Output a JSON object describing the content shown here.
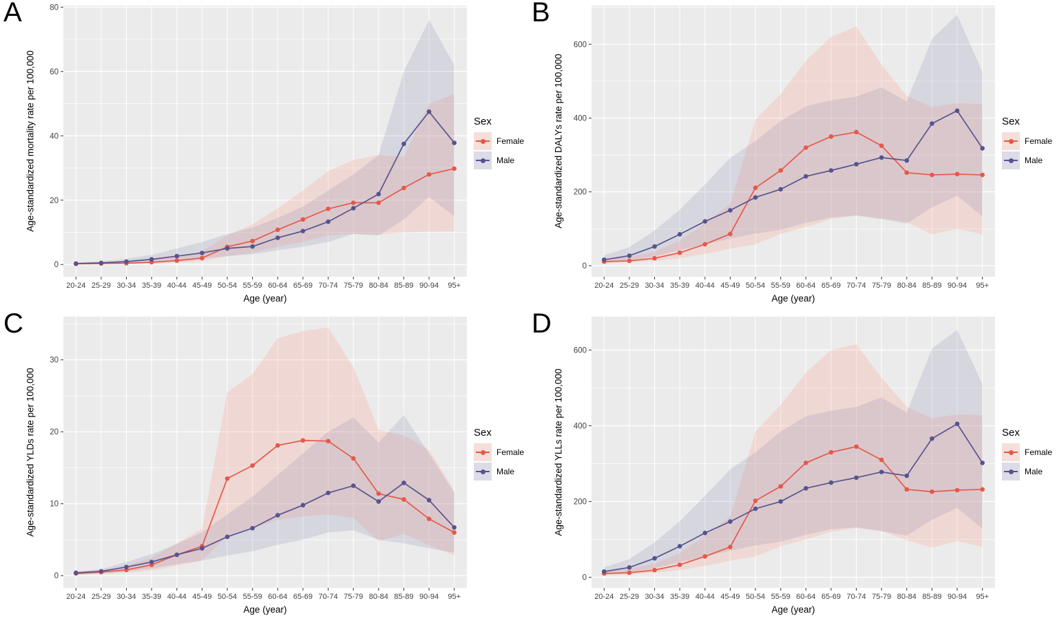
{
  "legend": {
    "title": "Sex",
    "position": "right",
    "items": [
      {
        "label": "Female",
        "line_color": "#E4594A",
        "band_color": "#F4DFD9",
        "band_fill": "rgba(250,170,150,0.28)"
      },
      {
        "label": "Male",
        "line_color": "#56548E",
        "band_color": "#DCDCE8",
        "band_fill": "rgba(126,126,176,0.19)"
      }
    ]
  },
  "chart_data": [
    {
      "panel": "A",
      "type": "line",
      "title": "",
      "ylabel": "Age-standardized mortality rate per 100,000",
      "xlabel": "Age (year)",
      "categories": [
        "20-24",
        "25-29",
        "30-34",
        "35-39",
        "40-44",
        "45-49",
        "50-54",
        "55-59",
        "60-64",
        "65-69",
        "70-74",
        "75-79",
        "80-84",
        "85-89",
        "90-94",
        "95+"
      ],
      "yticks": [
        0,
        20,
        40,
        60,
        80
      ],
      "ylim": [
        -3.8,
        80.5
      ],
      "grid": true,
      "legend_position": "right",
      "series": [
        {
          "name": "Female",
          "values": [
            0.2,
            0.3,
            0.4,
            0.7,
            1.2,
            2.0,
            5.5,
            7.3,
            10.8,
            14.0,
            17.3,
            19.2,
            19.2,
            23.8,
            28.0,
            29.8
          ],
          "lower": [
            0.1,
            0.1,
            0.2,
            0.3,
            0.6,
            1.0,
            2.6,
            3.6,
            5.5,
            7.0,
            9.0,
            9.5,
            9.3,
            10.0,
            10.2,
            10.3
          ],
          "upper": [
            0.4,
            0.6,
            0.9,
            1.5,
            2.6,
            4.0,
            9.0,
            12.5,
            17.5,
            23.0,
            29.0,
            32.5,
            34.0,
            33.5,
            50.0,
            53.0
          ]
        },
        {
          "name": "Male",
          "values": [
            0.3,
            0.5,
            0.9,
            1.6,
            2.6,
            3.6,
            5.0,
            5.6,
            8.3,
            10.4,
            13.3,
            17.5,
            21.9,
            37.5,
            47.5,
            37.8
          ],
          "lower": [
            0.2,
            0.3,
            0.5,
            0.8,
            1.3,
            1.9,
            2.6,
            3.2,
            4.4,
            5.5,
            7.0,
            9.5,
            9.0,
            14.0,
            21.0,
            15.0
          ],
          "upper": [
            0.6,
            1.0,
            1.8,
            3.0,
            5.0,
            7.0,
            9.5,
            11.5,
            14.5,
            18.0,
            23.0,
            28.0,
            34.0,
            60.0,
            76.0,
            62.0
          ]
        }
      ]
    },
    {
      "panel": "B",
      "type": "line",
      "title": "",
      "ylabel": "Age-standardized DALYs rate per 100,000",
      "xlabel": "Age (year)",
      "categories": [
        "20-24",
        "25-29",
        "30-34",
        "35-39",
        "40-44",
        "45-49",
        "50-54",
        "55-59",
        "60-64",
        "65-69",
        "70-74",
        "75-79",
        "80-84",
        "85-89",
        "90-94",
        "95+"
      ],
      "yticks": [
        0,
        200,
        400,
        600
      ],
      "ylim": [
        -30,
        705
      ],
      "grid": true,
      "legend_position": "right",
      "series": [
        {
          "name": "Female",
          "values": [
            11,
            13,
            20,
            35,
            58,
            86,
            211,
            258,
            320,
            350,
            362,
            325,
            252,
            246,
            248,
            246
          ],
          "lower": [
            6,
            9,
            13,
            20,
            32,
            46,
            58,
            86,
            105,
            126,
            136,
            128,
            118,
            85,
            100,
            85
          ],
          "upper": [
            18,
            24,
            38,
            68,
            115,
            168,
            395,
            465,
            555,
            620,
            648,
            545,
            460,
            430,
            440,
            438
          ]
        },
        {
          "name": "Male",
          "values": [
            16,
            27,
            52,
            85,
            120,
            150,
            185,
            207,
            242,
            258,
            275,
            293,
            285,
            385,
            420,
            318
          ],
          "lower": [
            9,
            14,
            25,
            42,
            58,
            73,
            87,
            97,
            116,
            131,
            136,
            126,
            114,
            158,
            190,
            133
          ],
          "upper": [
            28,
            50,
            95,
            152,
            220,
            292,
            338,
            392,
            432,
            448,
            458,
            483,
            445,
            615,
            680,
            525
          ]
        }
      ]
    },
    {
      "panel": "C",
      "type": "line",
      "title": "",
      "ylabel": "Age-standardized YLDs rate per 100,000",
      "xlabel": "Age (year)",
      "categories": [
        "20-24",
        "25-29",
        "30-34",
        "35-39",
        "40-44",
        "45-49",
        "50-54",
        "55-59",
        "60-64",
        "65-69",
        "70-74",
        "75-79",
        "80-84",
        "85-89",
        "90-94",
        "95+"
      ],
      "yticks": [
        0,
        10,
        20,
        30
      ],
      "ylim": [
        -1.7,
        36
      ],
      "grid": true,
      "legend_position": "right",
      "series": [
        {
          "name": "Female",
          "values": [
            0.3,
            0.5,
            0.8,
            1.5,
            2.9,
            4.1,
            13.5,
            15.3,
            18.1,
            18.8,
            18.7,
            16.3,
            11.4,
            10.6,
            7.9,
            6.0
          ],
          "lower": [
            0.1,
            0.2,
            0.4,
            0.7,
            1.4,
            2.1,
            5.5,
            6.5,
            7.8,
            8.2,
            8.5,
            8.0,
            4.8,
            5.8,
            4.2,
            2.8
          ],
          "upper": [
            0.5,
            0.8,
            1.4,
            2.5,
            4.5,
            6.5,
            25.5,
            28.0,
            33.0,
            34.0,
            34.5,
            29.0,
            20.3,
            19.5,
            17.5,
            11.8
          ]
        },
        {
          "name": "Male",
          "values": [
            0.4,
            0.6,
            1.2,
            1.9,
            2.9,
            3.8,
            5.4,
            6.6,
            8.4,
            9.8,
            11.5,
            12.5,
            10.3,
            12.9,
            10.5,
            6.7
          ],
          "lower": [
            0.2,
            0.3,
            0.6,
            1.0,
            1.6,
            2.1,
            2.8,
            3.4,
            4.3,
            5.0,
            6.0,
            6.3,
            5.0,
            4.5,
            3.8,
            3.2
          ],
          "upper": [
            0.6,
            0.9,
            1.9,
            3.0,
            4.4,
            6.0,
            8.5,
            11.0,
            14.0,
            17.0,
            20.0,
            22.0,
            18.5,
            22.3,
            17.0,
            11.5
          ]
        }
      ]
    },
    {
      "panel": "D",
      "type": "line",
      "title": "",
      "ylabel": "Age-standardized YLLs rate per 100,000",
      "xlabel": "Age (year)",
      "categories": [
        "20-24",
        "25-29",
        "30-34",
        "35-39",
        "40-44",
        "45-49",
        "50-54",
        "55-59",
        "60-64",
        "65-69",
        "70-74",
        "75-79",
        "80-84",
        "85-89",
        "90-94",
        "95+"
      ],
      "yticks": [
        0,
        200,
        400,
        600
      ],
      "ylim": [
        -28,
        688
      ],
      "grid": true,
      "legend_position": "right",
      "series": [
        {
          "name": "Female",
          "values": [
            10,
            12,
            19,
            33,
            55,
            80,
            202,
            240,
            302,
            330,
            345,
            310,
            232,
            226,
            230,
            232
          ],
          "lower": [
            5,
            8,
            12,
            19,
            30,
            44,
            55,
            82,
            100,
            120,
            130,
            122,
            98,
            78,
            96,
            80
          ],
          "upper": [
            16,
            22,
            36,
            64,
            110,
            160,
            385,
            455,
            540,
            600,
            615,
            527,
            450,
            420,
            430,
            428
          ]
        },
        {
          "name": "Male",
          "values": [
            15,
            26,
            50,
            82,
            117,
            147,
            181,
            200,
            235,
            250,
            263,
            278,
            268,
            366,
            405,
            302
          ],
          "lower": [
            8,
            13,
            24,
            40,
            55,
            70,
            84,
            94,
            112,
            127,
            132,
            122,
            110,
            152,
            183,
            128
          ],
          "upper": [
            26,
            48,
            92,
            148,
            215,
            285,
            330,
            385,
            425,
            440,
            450,
            475,
            435,
            604,
            653,
            510
          ]
        }
      ]
    }
  ]
}
